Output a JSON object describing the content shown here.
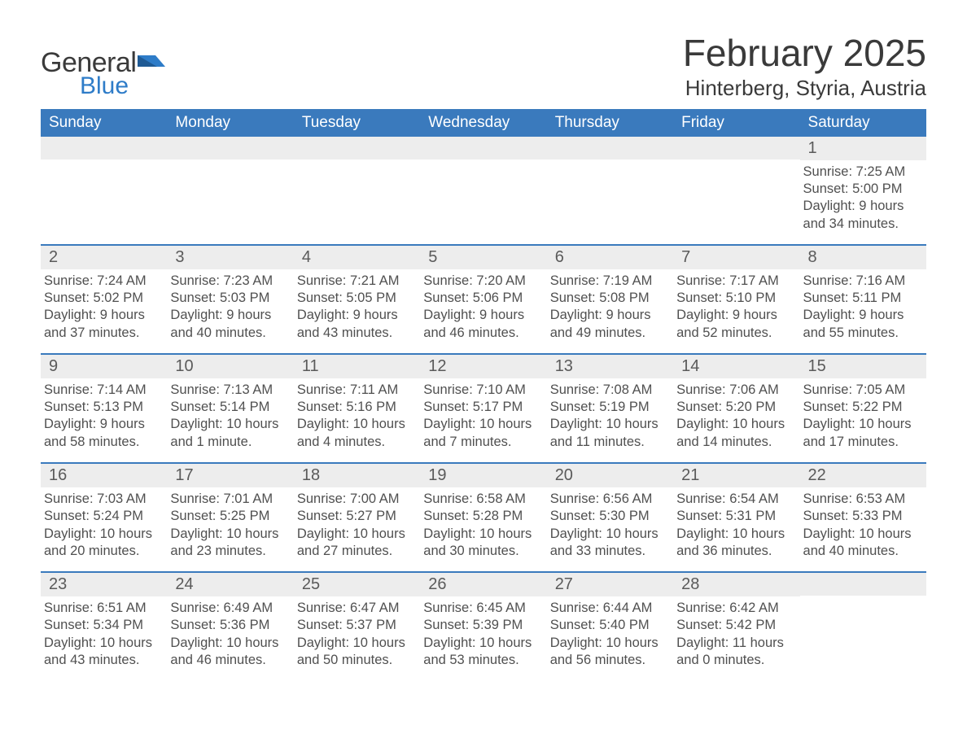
{
  "logo": {
    "general": "General",
    "blue": "Blue"
  },
  "title": {
    "month": "February 2025",
    "location": "Hinterberg, Styria, Austria"
  },
  "colors": {
    "header_bg": "#3a7abd",
    "header_text": "#ffffff",
    "daynum_bg": "#ededed",
    "text": "#505050",
    "title_text": "#3a3a3a",
    "logo_blue": "#2e7cc8",
    "week_border": "#3a7abd"
  },
  "daysOfWeek": [
    "Sunday",
    "Monday",
    "Tuesday",
    "Wednesday",
    "Thursday",
    "Friday",
    "Saturday"
  ],
  "weeks": [
    [
      {
        "n": "",
        "sunrise": "",
        "sunset": "",
        "daylight": ""
      },
      {
        "n": "",
        "sunrise": "",
        "sunset": "",
        "daylight": ""
      },
      {
        "n": "",
        "sunrise": "",
        "sunset": "",
        "daylight": ""
      },
      {
        "n": "",
        "sunrise": "",
        "sunset": "",
        "daylight": ""
      },
      {
        "n": "",
        "sunrise": "",
        "sunset": "",
        "daylight": ""
      },
      {
        "n": "",
        "sunrise": "",
        "sunset": "",
        "daylight": ""
      },
      {
        "n": "1",
        "sunrise": "Sunrise: 7:25 AM",
        "sunset": "Sunset: 5:00 PM",
        "daylight": "Daylight: 9 hours and 34 minutes."
      }
    ],
    [
      {
        "n": "2",
        "sunrise": "Sunrise: 7:24 AM",
        "sunset": "Sunset: 5:02 PM",
        "daylight": "Daylight: 9 hours and 37 minutes."
      },
      {
        "n": "3",
        "sunrise": "Sunrise: 7:23 AM",
        "sunset": "Sunset: 5:03 PM",
        "daylight": "Daylight: 9 hours and 40 minutes."
      },
      {
        "n": "4",
        "sunrise": "Sunrise: 7:21 AM",
        "sunset": "Sunset: 5:05 PM",
        "daylight": "Daylight: 9 hours and 43 minutes."
      },
      {
        "n": "5",
        "sunrise": "Sunrise: 7:20 AM",
        "sunset": "Sunset: 5:06 PM",
        "daylight": "Daylight: 9 hours and 46 minutes."
      },
      {
        "n": "6",
        "sunrise": "Sunrise: 7:19 AM",
        "sunset": "Sunset: 5:08 PM",
        "daylight": "Daylight: 9 hours and 49 minutes."
      },
      {
        "n": "7",
        "sunrise": "Sunrise: 7:17 AM",
        "sunset": "Sunset: 5:10 PM",
        "daylight": "Daylight: 9 hours and 52 minutes."
      },
      {
        "n": "8",
        "sunrise": "Sunrise: 7:16 AM",
        "sunset": "Sunset: 5:11 PM",
        "daylight": "Daylight: 9 hours and 55 minutes."
      }
    ],
    [
      {
        "n": "9",
        "sunrise": "Sunrise: 7:14 AM",
        "sunset": "Sunset: 5:13 PM",
        "daylight": "Daylight: 9 hours and 58 minutes."
      },
      {
        "n": "10",
        "sunrise": "Sunrise: 7:13 AM",
        "sunset": "Sunset: 5:14 PM",
        "daylight": "Daylight: 10 hours and 1 minute."
      },
      {
        "n": "11",
        "sunrise": "Sunrise: 7:11 AM",
        "sunset": "Sunset: 5:16 PM",
        "daylight": "Daylight: 10 hours and 4 minutes."
      },
      {
        "n": "12",
        "sunrise": "Sunrise: 7:10 AM",
        "sunset": "Sunset: 5:17 PM",
        "daylight": "Daylight: 10 hours and 7 minutes."
      },
      {
        "n": "13",
        "sunrise": "Sunrise: 7:08 AM",
        "sunset": "Sunset: 5:19 PM",
        "daylight": "Daylight: 10 hours and 11 minutes."
      },
      {
        "n": "14",
        "sunrise": "Sunrise: 7:06 AM",
        "sunset": "Sunset: 5:20 PM",
        "daylight": "Daylight: 10 hours and 14 minutes."
      },
      {
        "n": "15",
        "sunrise": "Sunrise: 7:05 AM",
        "sunset": "Sunset: 5:22 PM",
        "daylight": "Daylight: 10 hours and 17 minutes."
      }
    ],
    [
      {
        "n": "16",
        "sunrise": "Sunrise: 7:03 AM",
        "sunset": "Sunset: 5:24 PM",
        "daylight": "Daylight: 10 hours and 20 minutes."
      },
      {
        "n": "17",
        "sunrise": "Sunrise: 7:01 AM",
        "sunset": "Sunset: 5:25 PM",
        "daylight": "Daylight: 10 hours and 23 minutes."
      },
      {
        "n": "18",
        "sunrise": "Sunrise: 7:00 AM",
        "sunset": "Sunset: 5:27 PM",
        "daylight": "Daylight: 10 hours and 27 minutes."
      },
      {
        "n": "19",
        "sunrise": "Sunrise: 6:58 AM",
        "sunset": "Sunset: 5:28 PM",
        "daylight": "Daylight: 10 hours and 30 minutes."
      },
      {
        "n": "20",
        "sunrise": "Sunrise: 6:56 AM",
        "sunset": "Sunset: 5:30 PM",
        "daylight": "Daylight: 10 hours and 33 minutes."
      },
      {
        "n": "21",
        "sunrise": "Sunrise: 6:54 AM",
        "sunset": "Sunset: 5:31 PM",
        "daylight": "Daylight: 10 hours and 36 minutes."
      },
      {
        "n": "22",
        "sunrise": "Sunrise: 6:53 AM",
        "sunset": "Sunset: 5:33 PM",
        "daylight": "Daylight: 10 hours and 40 minutes."
      }
    ],
    [
      {
        "n": "23",
        "sunrise": "Sunrise: 6:51 AM",
        "sunset": "Sunset: 5:34 PM",
        "daylight": "Daylight: 10 hours and 43 minutes."
      },
      {
        "n": "24",
        "sunrise": "Sunrise: 6:49 AM",
        "sunset": "Sunset: 5:36 PM",
        "daylight": "Daylight: 10 hours and 46 minutes."
      },
      {
        "n": "25",
        "sunrise": "Sunrise: 6:47 AM",
        "sunset": "Sunset: 5:37 PM",
        "daylight": "Daylight: 10 hours and 50 minutes."
      },
      {
        "n": "26",
        "sunrise": "Sunrise: 6:45 AM",
        "sunset": "Sunset: 5:39 PM",
        "daylight": "Daylight: 10 hours and 53 minutes."
      },
      {
        "n": "27",
        "sunrise": "Sunrise: 6:44 AM",
        "sunset": "Sunset: 5:40 PM",
        "daylight": "Daylight: 10 hours and 56 minutes."
      },
      {
        "n": "28",
        "sunrise": "Sunrise: 6:42 AM",
        "sunset": "Sunset: 5:42 PM",
        "daylight": "Daylight: 11 hours and 0 minutes."
      },
      {
        "n": "",
        "sunrise": "",
        "sunset": "",
        "daylight": ""
      }
    ]
  ]
}
